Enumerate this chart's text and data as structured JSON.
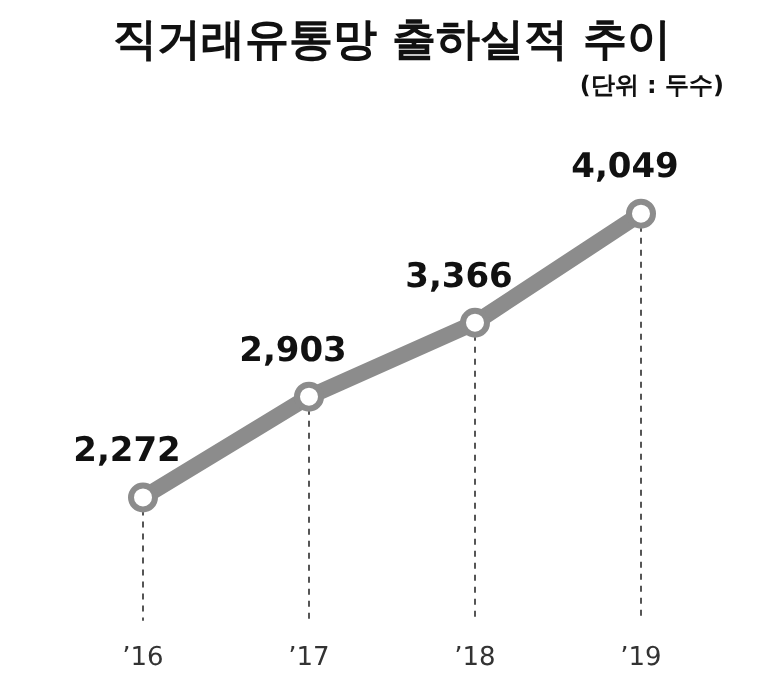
{
  "chart_data": {
    "type": "line",
    "title": "직거래유통망 출하실적 추이",
    "subtitle": "(단위 : 두수)",
    "categories": [
      "’16",
      "’17",
      "’18",
      "’19"
    ],
    "series": [
      {
        "color": "#8c8c8c",
        "values": [
          2272,
          2903,
          3366,
          4049
        ],
        "value_labels": [
          "2,272",
          "2,903",
          "3,366",
          "4,049"
        ]
      }
    ],
    "marker": "circle",
    "grid": "x",
    "legend": false,
    "tick_labels": "x"
  }
}
